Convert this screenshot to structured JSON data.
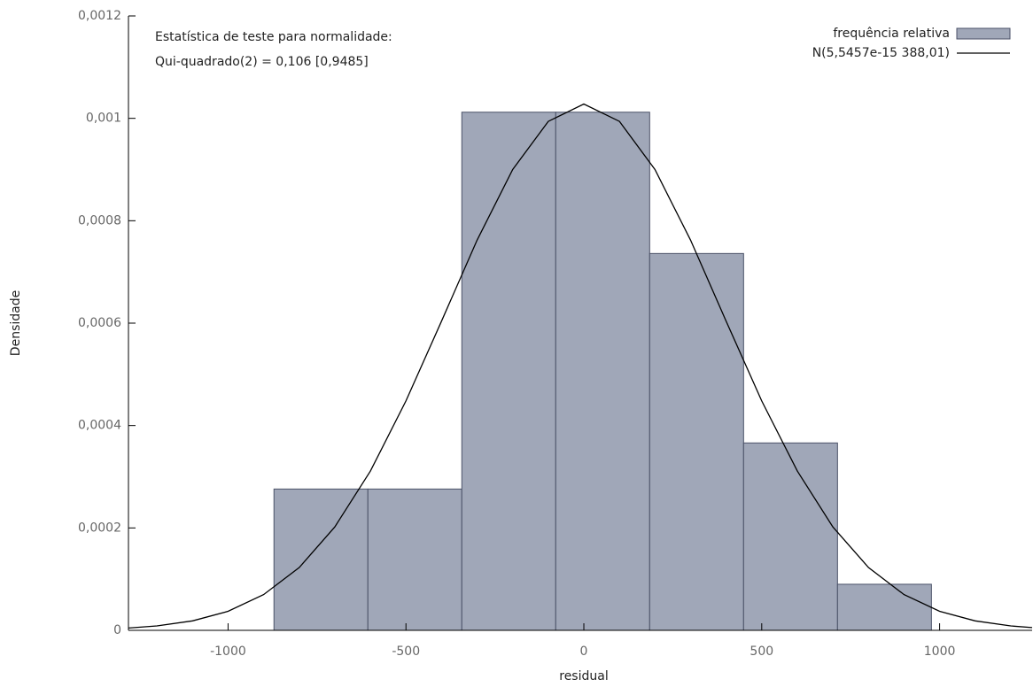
{
  "chart_data": {
    "type": "histogram",
    "annotation": [
      "Estatística de teste para normalidade:",
      "Qui-quadrado(2) = 0,106 [0,9485]"
    ],
    "xlabel": "residual",
    "ylabel": "Densidade",
    "bins": [
      -871,
      -607,
      -343,
      -79,
      185,
      449,
      713,
      977
    ],
    "series": [
      {
        "name": "frequência relativa",
        "color": "#a0a7b8",
        "values": [
          0.000276,
          0.000276,
          0.001012,
          0.001012,
          0.000736,
          0.000366,
          9e-05
        ]
      }
    ],
    "curve": {
      "name": "N(5,5457e-15 388,01)",
      "color": "#000000",
      "x": [
        -1280,
        -1200,
        -1100,
        -1000,
        -900,
        -800,
        -700,
        -600,
        -500,
        -400,
        -300,
        -200,
        -100,
        0,
        100,
        200,
        300,
        400,
        500,
        600,
        700,
        800,
        900,
        1000,
        1100,
        1200,
        1260
      ],
      "y": [
        4.46e-06,
        8.6e-06,
        1.85e-05,
        3.71e-05,
        6.98e-05,
        0.0001227,
        0.000202,
        0.000311,
        0.000448,
        0.000604,
        0.000762,
        0.0009,
        0.000994,
        0.001028,
        0.000994,
        0.0009,
        0.000762,
        0.000604,
        0.000448,
        0.000311,
        0.000202,
        0.0001227,
        6.98e-05,
        3.71e-05,
        1.85e-05,
        8.6e-06,
        5.28e-06
      ]
    },
    "xlim": [
      -1280,
      1260
    ],
    "ylim": [
      0,
      0.0012
    ],
    "xticks": [
      -1000,
      -500,
      0,
      500,
      1000
    ],
    "yticks": [
      0,
      {
        "value": 0.0002,
        "label": "0,0002"
      },
      {
        "value": 0.0004,
        "label": "0,0004"
      },
      {
        "value": 0.0006,
        "label": "0,0006"
      },
      {
        "value": 0.0008,
        "label": "0,0008"
      },
      {
        "value": 0.001,
        "label": "0,001"
      },
      {
        "value": 0.0012,
        "label": "0,0012"
      }
    ],
    "legend": "top-right"
  }
}
